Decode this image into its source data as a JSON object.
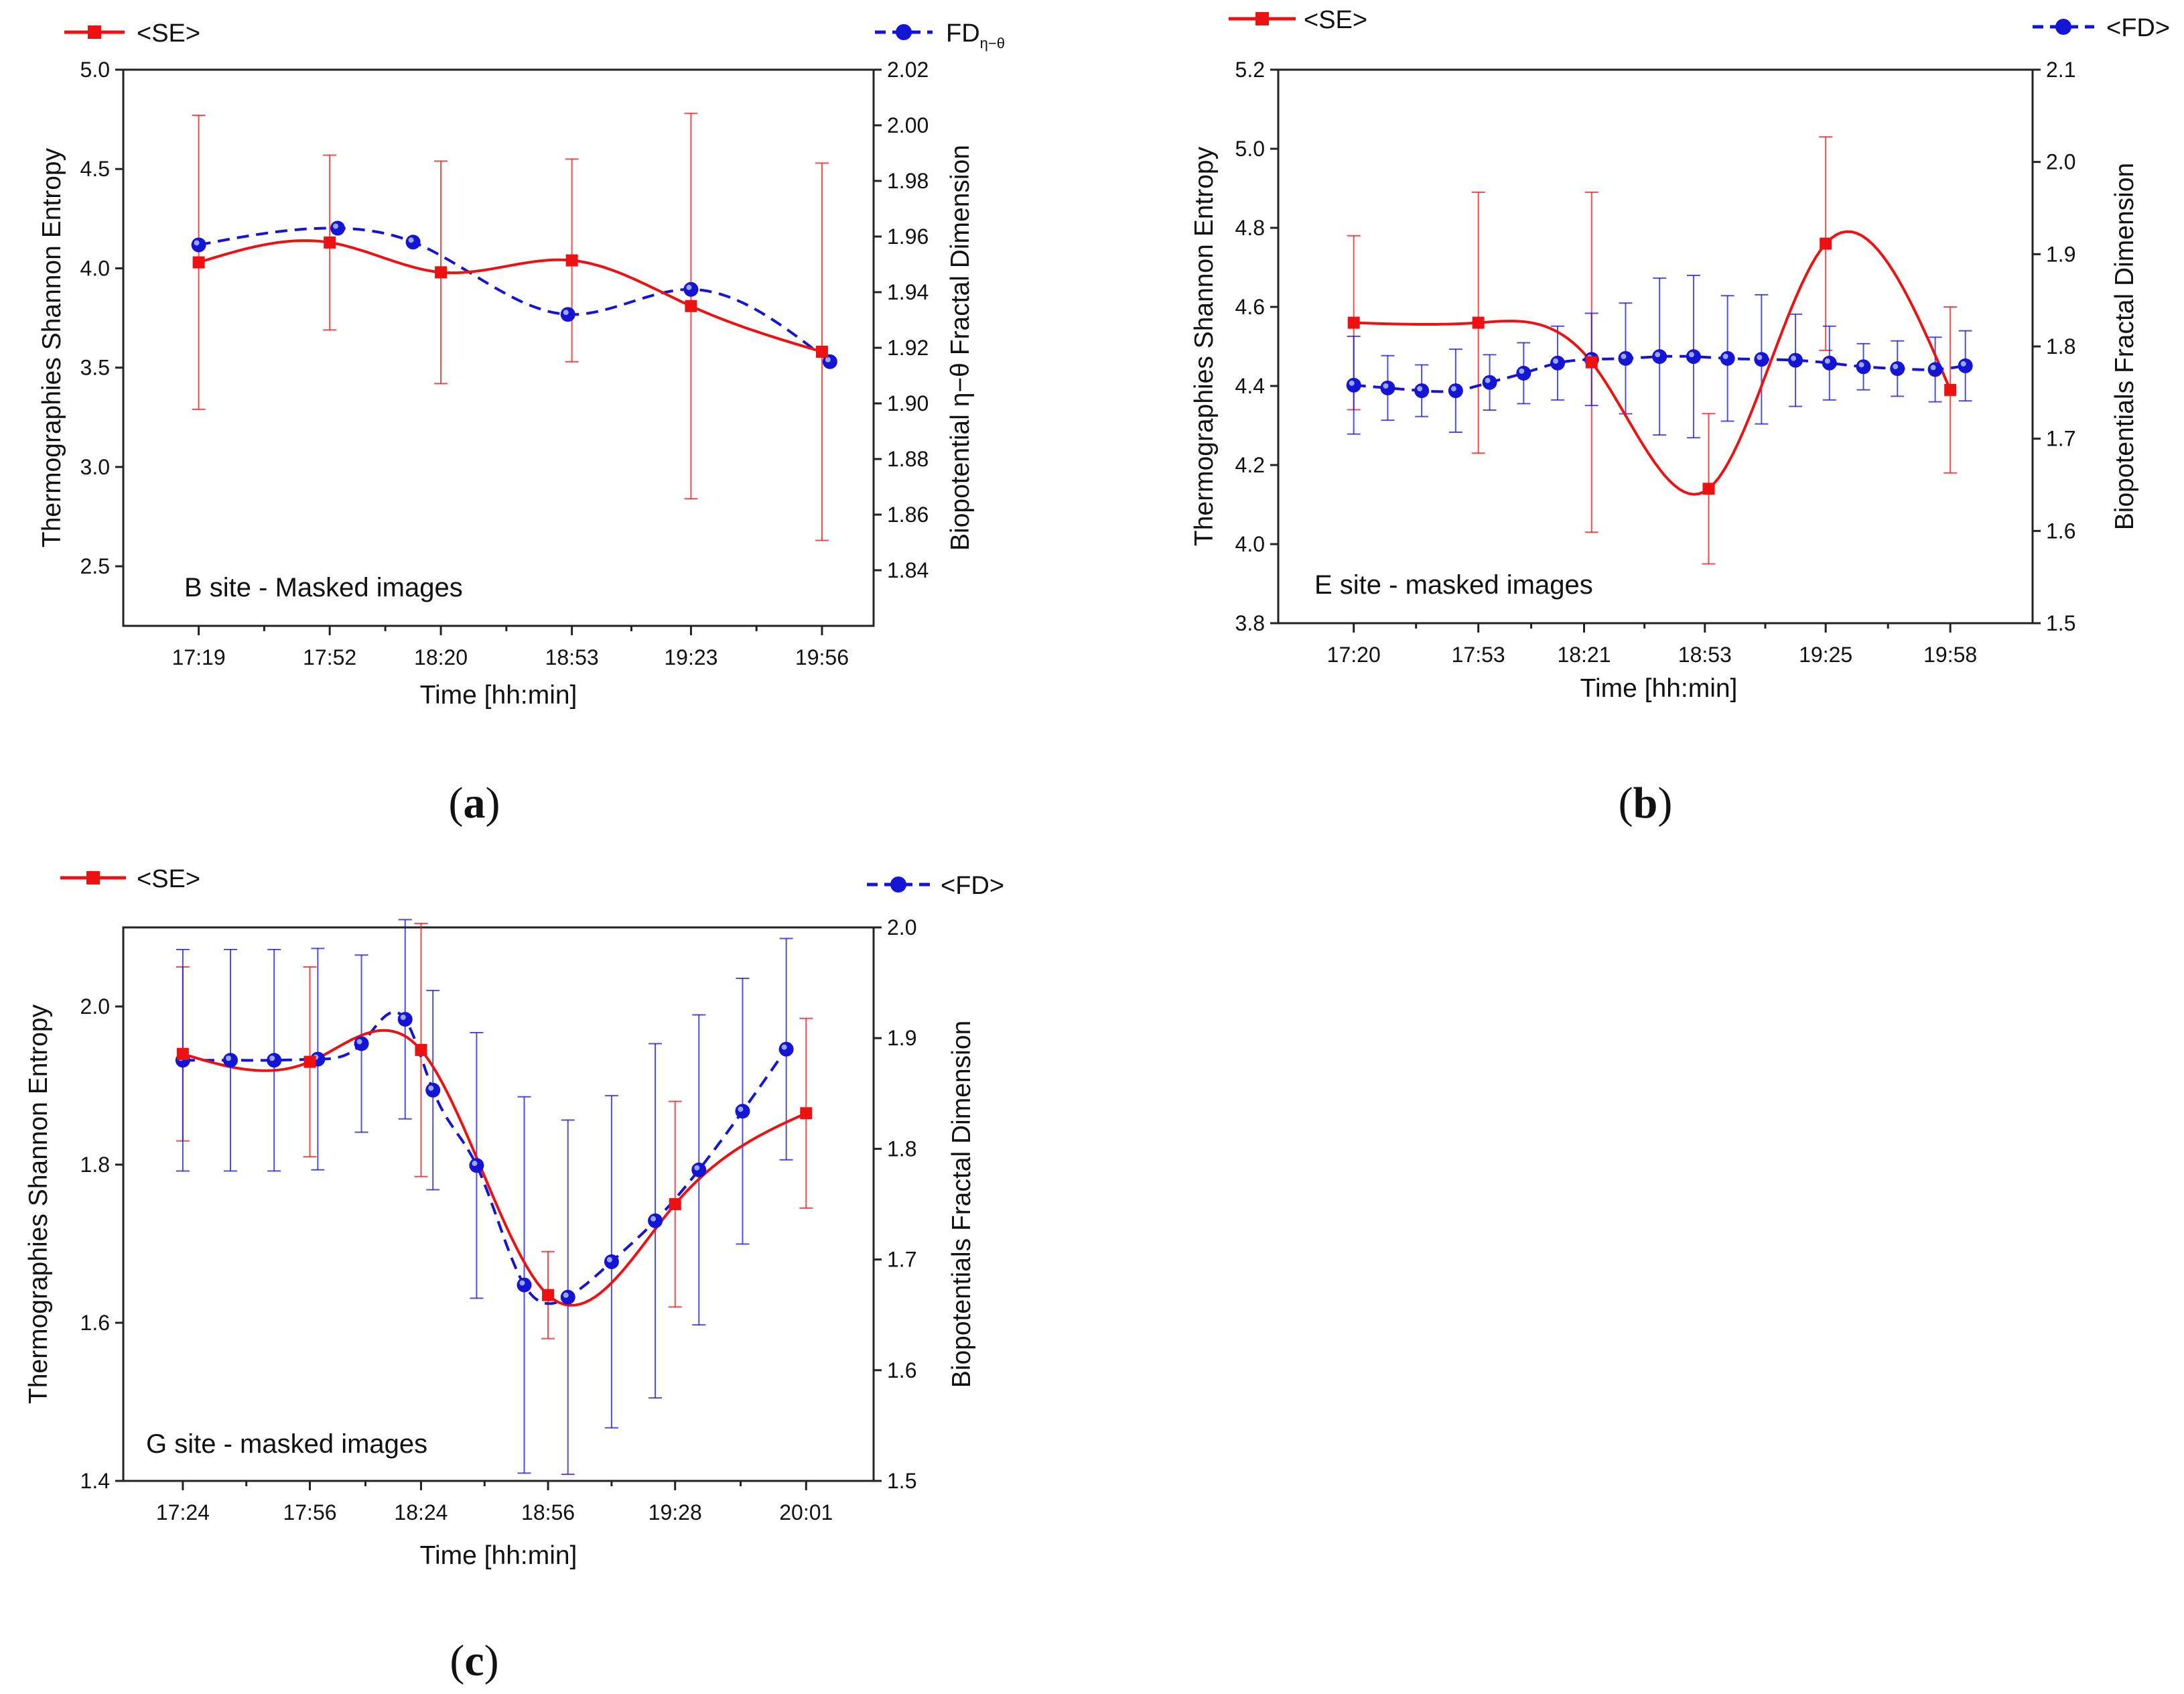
{
  "colors": {
    "se": "#ee1111",
    "fd": "#1414d4",
    "axis": "#222222"
  },
  "chart_data": [
    {
      "panel": "a",
      "type": "line",
      "caption": {
        "letter": "a",
        "open": "(",
        "close": ")"
      },
      "annotation": "B site - Masked images",
      "xlabel": "Time [hh:min]",
      "ylabel_left": "Thermographies Shannon Entropy",
      "ylabel_right": "Biopotential η−θ Fractal Dimension",
      "xlim": [
        17.0,
        20.15
      ],
      "xticks": [
        17.3167,
        17.8667,
        18.3333,
        18.8833,
        19.3833,
        19.9333
      ],
      "xtick_labels": [
        "17:19",
        "17:52",
        "18:20",
        "18:53",
        "19:23",
        "19:56"
      ],
      "ylim_left": [
        2.2,
        5.0
      ],
      "yticks_left": [
        2.5,
        3.0,
        3.5,
        4.0,
        4.5,
        5.0
      ],
      "ytick_labels_left": [
        "2.5",
        "3.0",
        "3.5",
        "4.0",
        "4.5",
        "5.0"
      ],
      "ylim_right": [
        1.82,
        2.02
      ],
      "yticks_right": [
        1.84,
        1.86,
        1.88,
        1.9,
        1.92,
        1.94,
        1.96,
        1.98,
        2.0,
        2.02
      ],
      "ytick_labels_right": [
        "1.84",
        "1.86",
        "1.88",
        "1.90",
        "1.92",
        "1.94",
        "1.96",
        "1.98",
        "2.00",
        "2.02"
      ],
      "legend": {
        "se": "<SE>",
        "fd": "FD",
        "fd_sub": "η−θ"
      },
      "series": [
        {
          "name": "<SE>",
          "axis": "left",
          "marker": "square",
          "line": "solid",
          "x": [
            17.3167,
            17.8667,
            18.3333,
            18.8833,
            19.3833,
            19.9333
          ],
          "y": [
            4.03,
            4.13,
            3.98,
            4.04,
            3.81,
            3.58
          ],
          "err": [
            0.74,
            0.44,
            0.56,
            0.51,
            0.97,
            0.95
          ]
        },
        {
          "name": "FD",
          "axis": "right",
          "marker": "circle",
          "line": "dashed",
          "x": [
            17.3167,
            17.9,
            18.2167,
            18.8667,
            19.3833,
            19.9667
          ],
          "y": [
            1.957,
            1.963,
            1.958,
            1.932,
            1.941,
            1.915
          ],
          "err": [
            0,
            0,
            0,
            0,
            0,
            0
          ]
        }
      ]
    },
    {
      "panel": "b",
      "type": "line",
      "caption": {
        "letter": "b",
        "open": "(",
        "close": ")"
      },
      "annotation": "E site - masked images",
      "xlabel": "Time [hh:min]",
      "ylabel_left": "Thermographies Shannon Entropy",
      "ylabel_right": "Biopotentials Fractal Dimension",
      "xlim": [
        17.0,
        20.33
      ],
      "xticks": [
        17.3333,
        17.8833,
        18.35,
        18.8833,
        19.4167,
        19.9667
      ],
      "xtick_labels": [
        "17:20",
        "17:53",
        "18:21",
        "18:53",
        "19:25",
        "19:58"
      ],
      "ylim_left": [
        3.8,
        5.2
      ],
      "yticks_left": [
        3.8,
        4.0,
        4.2,
        4.4,
        4.6,
        4.8,
        5.0,
        5.2
      ],
      "ytick_labels_left": [
        "3.8",
        "4.0",
        "4.2",
        "4.4",
        "4.6",
        "4.8",
        "5.0",
        "5.2"
      ],
      "ylim_right": [
        1.5,
        2.1
      ],
      "yticks_right": [
        1.5,
        1.6,
        1.7,
        1.8,
        1.9,
        2.0,
        2.1
      ],
      "ytick_labels_right": [
        "1.5",
        "1.6",
        "1.7",
        "1.8",
        "1.9",
        "2.0",
        "2.1"
      ],
      "legend": {
        "se": "<SE>",
        "fd": "<FD>",
        "fd_sub": ""
      },
      "series": [
        {
          "name": "<SE>",
          "axis": "left",
          "marker": "square",
          "line": "solid",
          "x": [
            17.3333,
            17.8833,
            18.3833,
            18.9,
            19.4167,
            19.9667
          ],
          "y": [
            4.56,
            4.56,
            4.46,
            4.14,
            4.76,
            4.39
          ],
          "err": [
            0.22,
            0.33,
            0.43,
            0.19,
            0.27,
            0.21
          ]
        },
        {
          "name": "<FD>",
          "axis": "right",
          "marker": "circle",
          "line": "dashed",
          "x": [
            17.3333,
            17.4833,
            17.6333,
            17.7833,
            17.9333,
            18.0833,
            18.2333,
            18.3833,
            18.5333,
            18.6833,
            18.8333,
            18.9833,
            19.1333,
            19.2833,
            19.4333,
            19.5833,
            19.7333,
            19.9,
            20.0333
          ],
          "y": [
            1.758,
            1.755,
            1.752,
            1.752,
            1.761,
            1.771,
            1.782,
            1.786,
            1.787,
            1.789,
            1.789,
            1.787,
            1.786,
            1.785,
            1.782,
            1.778,
            1.776,
            1.775,
            1.779
          ],
          "err": [
            0.053,
            0.035,
            0.028,
            0.045,
            0.03,
            0.033,
            0.04,
            0.05,
            0.06,
            0.085,
            0.088,
            0.068,
            0.07,
            0.05,
            0.04,
            0.025,
            0.03,
            0.035,
            0.038
          ]
        }
      ]
    },
    {
      "panel": "c",
      "type": "line",
      "caption": {
        "letter": "c",
        "open": "(",
        "close": ")"
      },
      "annotation": "G site - masked images",
      "xlabel": "Time [hh:min]",
      "ylabel_left": "Thermographies Shannon Entropy",
      "ylabel_right": "Biopotentials Fractal Dimension",
      "xlim": [
        17.15,
        20.3
      ],
      "xticks": [
        17.4,
        17.9333,
        18.4,
        18.9333,
        19.4667,
        20.0167
      ],
      "xtick_labels": [
        "17:24",
        "17:56",
        "18:24",
        "18:56",
        "19:28",
        "20:01"
      ],
      "ylim_left": [
        1.4,
        2.1
      ],
      "yticks_left": [
        1.4,
        1.6,
        1.8,
        2.0
      ],
      "ytick_labels_left": [
        "1.4",
        "1.6",
        "1.8",
        "2.0"
      ],
      "ylim_right": [
        1.5,
        2.0
      ],
      "yticks_right": [
        1.5,
        1.6,
        1.7,
        1.8,
        1.9,
        2.0
      ],
      "ytick_labels_right": [
        "1.5",
        "1.6",
        "1.7",
        "1.8",
        "1.9",
        "2.0"
      ],
      "legend": {
        "se": "<SE>",
        "fd": "<FD>",
        "fd_sub": ""
      },
      "series": [
        {
          "name": "<SE>",
          "axis": "left",
          "marker": "square",
          "line": "solid",
          "x": [
            17.4,
            17.9333,
            18.4,
            18.9333,
            19.4667,
            20.0167
          ],
          "y": [
            1.94,
            1.93,
            1.945,
            1.635,
            1.75,
            1.865
          ],
          "err": [
            0.11,
            0.12,
            0.16,
            0.055,
            0.13,
            0.12
          ]
        },
        {
          "name": "<FD>",
          "axis": "right",
          "marker": "circle",
          "line": "dashed",
          "x": [
            17.4,
            17.6,
            17.7833,
            17.9667,
            18.15,
            18.3333,
            18.45,
            18.6333,
            18.8333,
            19.0167,
            19.2,
            19.3833,
            19.5667,
            19.75,
            19.9333
          ],
          "y": [
            1.88,
            1.88,
            1.88,
            1.881,
            1.895,
            1.917,
            1.853,
            1.785,
            1.677,
            1.666,
            1.698,
            1.735,
            1.781,
            1.834,
            1.89
          ],
          "err": [
            0.1,
            0.1,
            0.1,
            0.1,
            0.08,
            0.09,
            0.09,
            0.12,
            0.17,
            0.16,
            0.15,
            0.16,
            0.14,
            0.12,
            0.1
          ]
        }
      ]
    }
  ]
}
